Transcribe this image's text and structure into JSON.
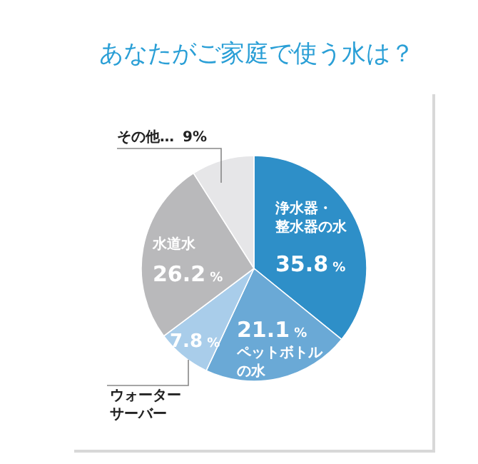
{
  "chart_data": {
    "type": "pie",
    "title": "あなたがご家庭で使う水は？",
    "categories": [
      "浄水器・整水器の水",
      "ペットボトルの水",
      "ウォーターサーバー",
      "水道水",
      "その他…"
    ],
    "values": [
      35.8,
      21.1,
      7.8,
      26.2,
      9
    ],
    "colors": [
      "#2e8fc8",
      "#6aa9d6",
      "#a9cdea",
      "#b9b9bb",
      "#e6e6e8"
    ],
    "value_labels": [
      "35.8 %",
      "21.1 %",
      "7.8 %",
      "26.2 %",
      "9%"
    ]
  }
}
